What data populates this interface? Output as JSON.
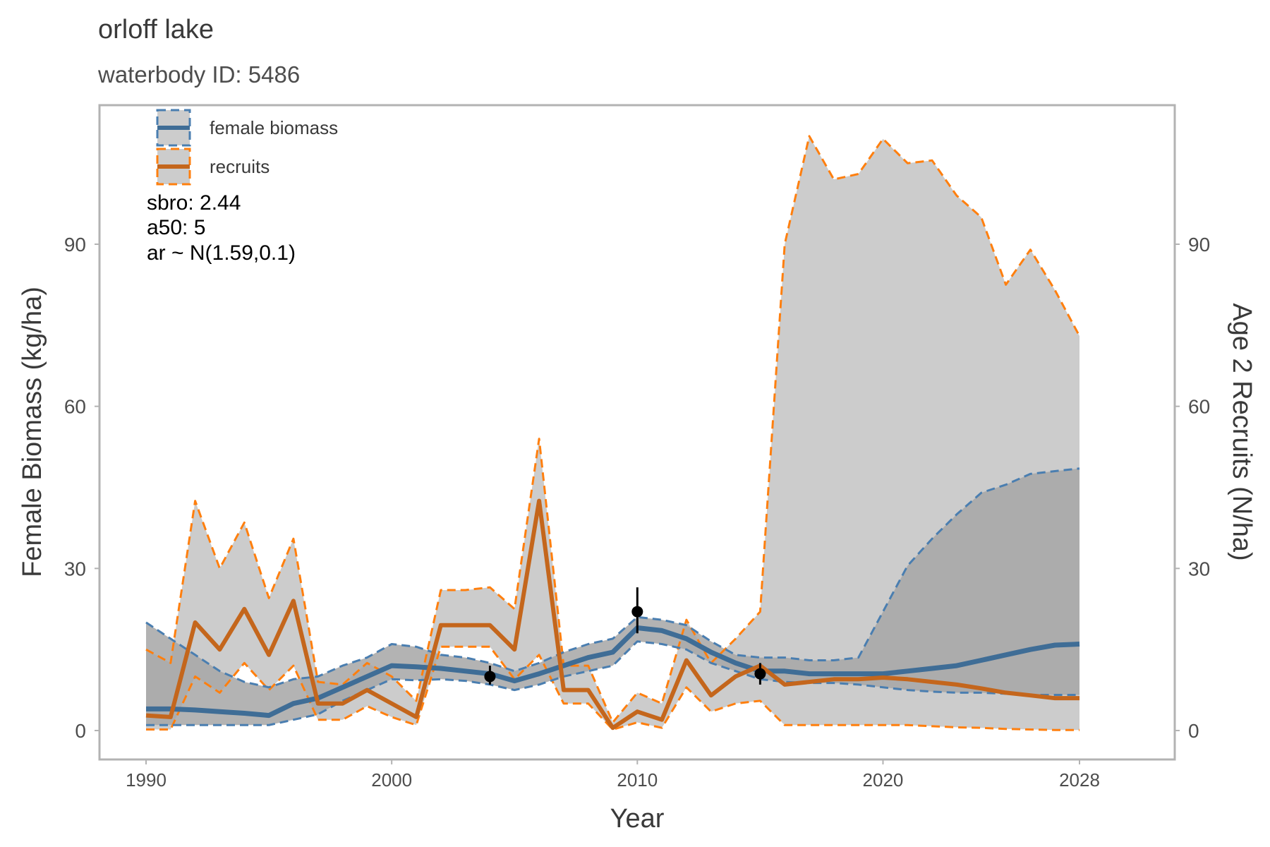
{
  "title": "orloff lake",
  "subtitle": "waterbody ID: 5486",
  "annotations": [
    "sbro: 2.44",
    "a50: 5",
    "ar ~ N(1.59,0.1)"
  ],
  "colors": {
    "biomass": "#3f6d96",
    "recruits": "#c4661c",
    "recruits_dash": "#ff7f0e",
    "biomass_dash": "#4a7eb0",
    "ribbon_light": "#cccccc",
    "ribbon_dark": "#a6a6a6",
    "panel_border": "#b3b3b3"
  },
  "chart_data": {
    "type": "line",
    "title": "orloff lake",
    "subtitle": "waterbody ID: 5486",
    "xlabel": "Year",
    "ylabel": "Female Biomass (kg/ha)",
    "y2label": "Age 2 Recruits (N/ha)",
    "xlim": [
      1990,
      2028
    ],
    "ylim": [
      0,
      110
    ],
    "x_ticks": [
      1990,
      2000,
      2010,
      2020,
      2028
    ],
    "y_ticks": [
      0,
      30,
      60,
      90
    ],
    "y2_ticks": [
      0,
      30,
      60,
      90
    ],
    "grid": false,
    "legend_position": "top-left",
    "x": [
      1990,
      1991,
      1992,
      1993,
      1994,
      1995,
      1996,
      1997,
      1998,
      1999,
      2000,
      2001,
      2002,
      2003,
      2004,
      2005,
      2006,
      2007,
      2008,
      2009,
      2010,
      2011,
      2012,
      2013,
      2014,
      2015,
      2016,
      2017,
      2018,
      2019,
      2020,
      2021,
      2022,
      2023,
      2024,
      2025,
      2026,
      2027,
      2028
    ],
    "series": [
      {
        "name": "female biomass",
        "values": [
          4,
          4,
          3.8,
          3.5,
          3.2,
          2.8,
          5,
          6,
          8,
          10,
          12,
          11.8,
          11.5,
          11,
          10.5,
          9.2,
          10.5,
          12,
          13.5,
          14.5,
          19,
          18.5,
          17,
          14.5,
          12.5,
          11,
          11,
          10.5,
          10.5,
          10.5,
          10.5,
          11,
          11.5,
          12,
          13,
          14,
          15,
          15.8,
          16
        ],
        "lower": [
          1,
          1,
          1,
          1,
          1,
          1,
          2,
          3,
          5.5,
          7.5,
          9.5,
          9.3,
          9.5,
          9.2,
          8.5,
          7.5,
          8.5,
          10,
          11,
          12,
          16.5,
          16,
          15,
          12.5,
          11,
          9.5,
          9,
          8.8,
          8.8,
          8.5,
          8,
          7.5,
          7.2,
          7,
          7,
          6.8,
          6.6,
          6.6,
          6.6
        ],
        "upper": [
          20,
          17,
          14,
          11,
          9,
          8,
          9.5,
          10,
          12,
          13.5,
          16,
          15.5,
          14,
          13.5,
          12.5,
          11,
          12.5,
          14.5,
          16,
          17,
          21,
          20.5,
          19.5,
          16.5,
          14,
          13.5,
          13.5,
          13,
          13,
          13.5,
          22,
          30.5,
          35.5,
          40,
          44,
          45.5,
          47.5,
          48,
          48.5
        ]
      },
      {
        "name": "recruits",
        "values": [
          2.8,
          2.5,
          20,
          15,
          22.5,
          14,
          24,
          5,
          5,
          7.5,
          5,
          2.5,
          19.5,
          19.5,
          19.5,
          15,
          42.5,
          7.5,
          7.5,
          0.5,
          3.5,
          2,
          13,
          6.5,
          10,
          12,
          8.5,
          9,
          9.5,
          9.5,
          9.8,
          9.5,
          9,
          8.5,
          7.8,
          7,
          6.5,
          6,
          6
        ],
        "lower": [
          0.2,
          0.2,
          10,
          7,
          12.5,
          7.5,
          12,
          2,
          2,
          4.5,
          2.5,
          1,
          15.5,
          15.5,
          15.5,
          9.5,
          14,
          5,
          5,
          0.2,
          1.5,
          0.5,
          8,
          3.5,
          5,
          5.5,
          1,
          1,
          1,
          1,
          1,
          1,
          0.8,
          0.6,
          0.5,
          0.3,
          0.2,
          0.1,
          0.1
        ],
        "upper": [
          15,
          12.5,
          42.5,
          30,
          38.5,
          24.5,
          35.5,
          9,
          8.5,
          12.5,
          10,
          5.5,
          26,
          26,
          26.5,
          22.5,
          54,
          12,
          12,
          1.5,
          7,
          5,
          20.5,
          12.5,
          17,
          22,
          90,
          110,
          102,
          103,
          109.5,
          105,
          105.5,
          99,
          95,
          82.5,
          89,
          81.5,
          73
        ]
      }
    ],
    "points": [
      {
        "x": 2004,
        "y": 10,
        "ymin": 8.5,
        "ymax": 12
      },
      {
        "x": 2010,
        "y": 22,
        "ymin": 18,
        "ymax": 26.5
      },
      {
        "x": 2015,
        "y": 10.5,
        "ymin": 8.5,
        "ymax": 12.5
      }
    ]
  }
}
